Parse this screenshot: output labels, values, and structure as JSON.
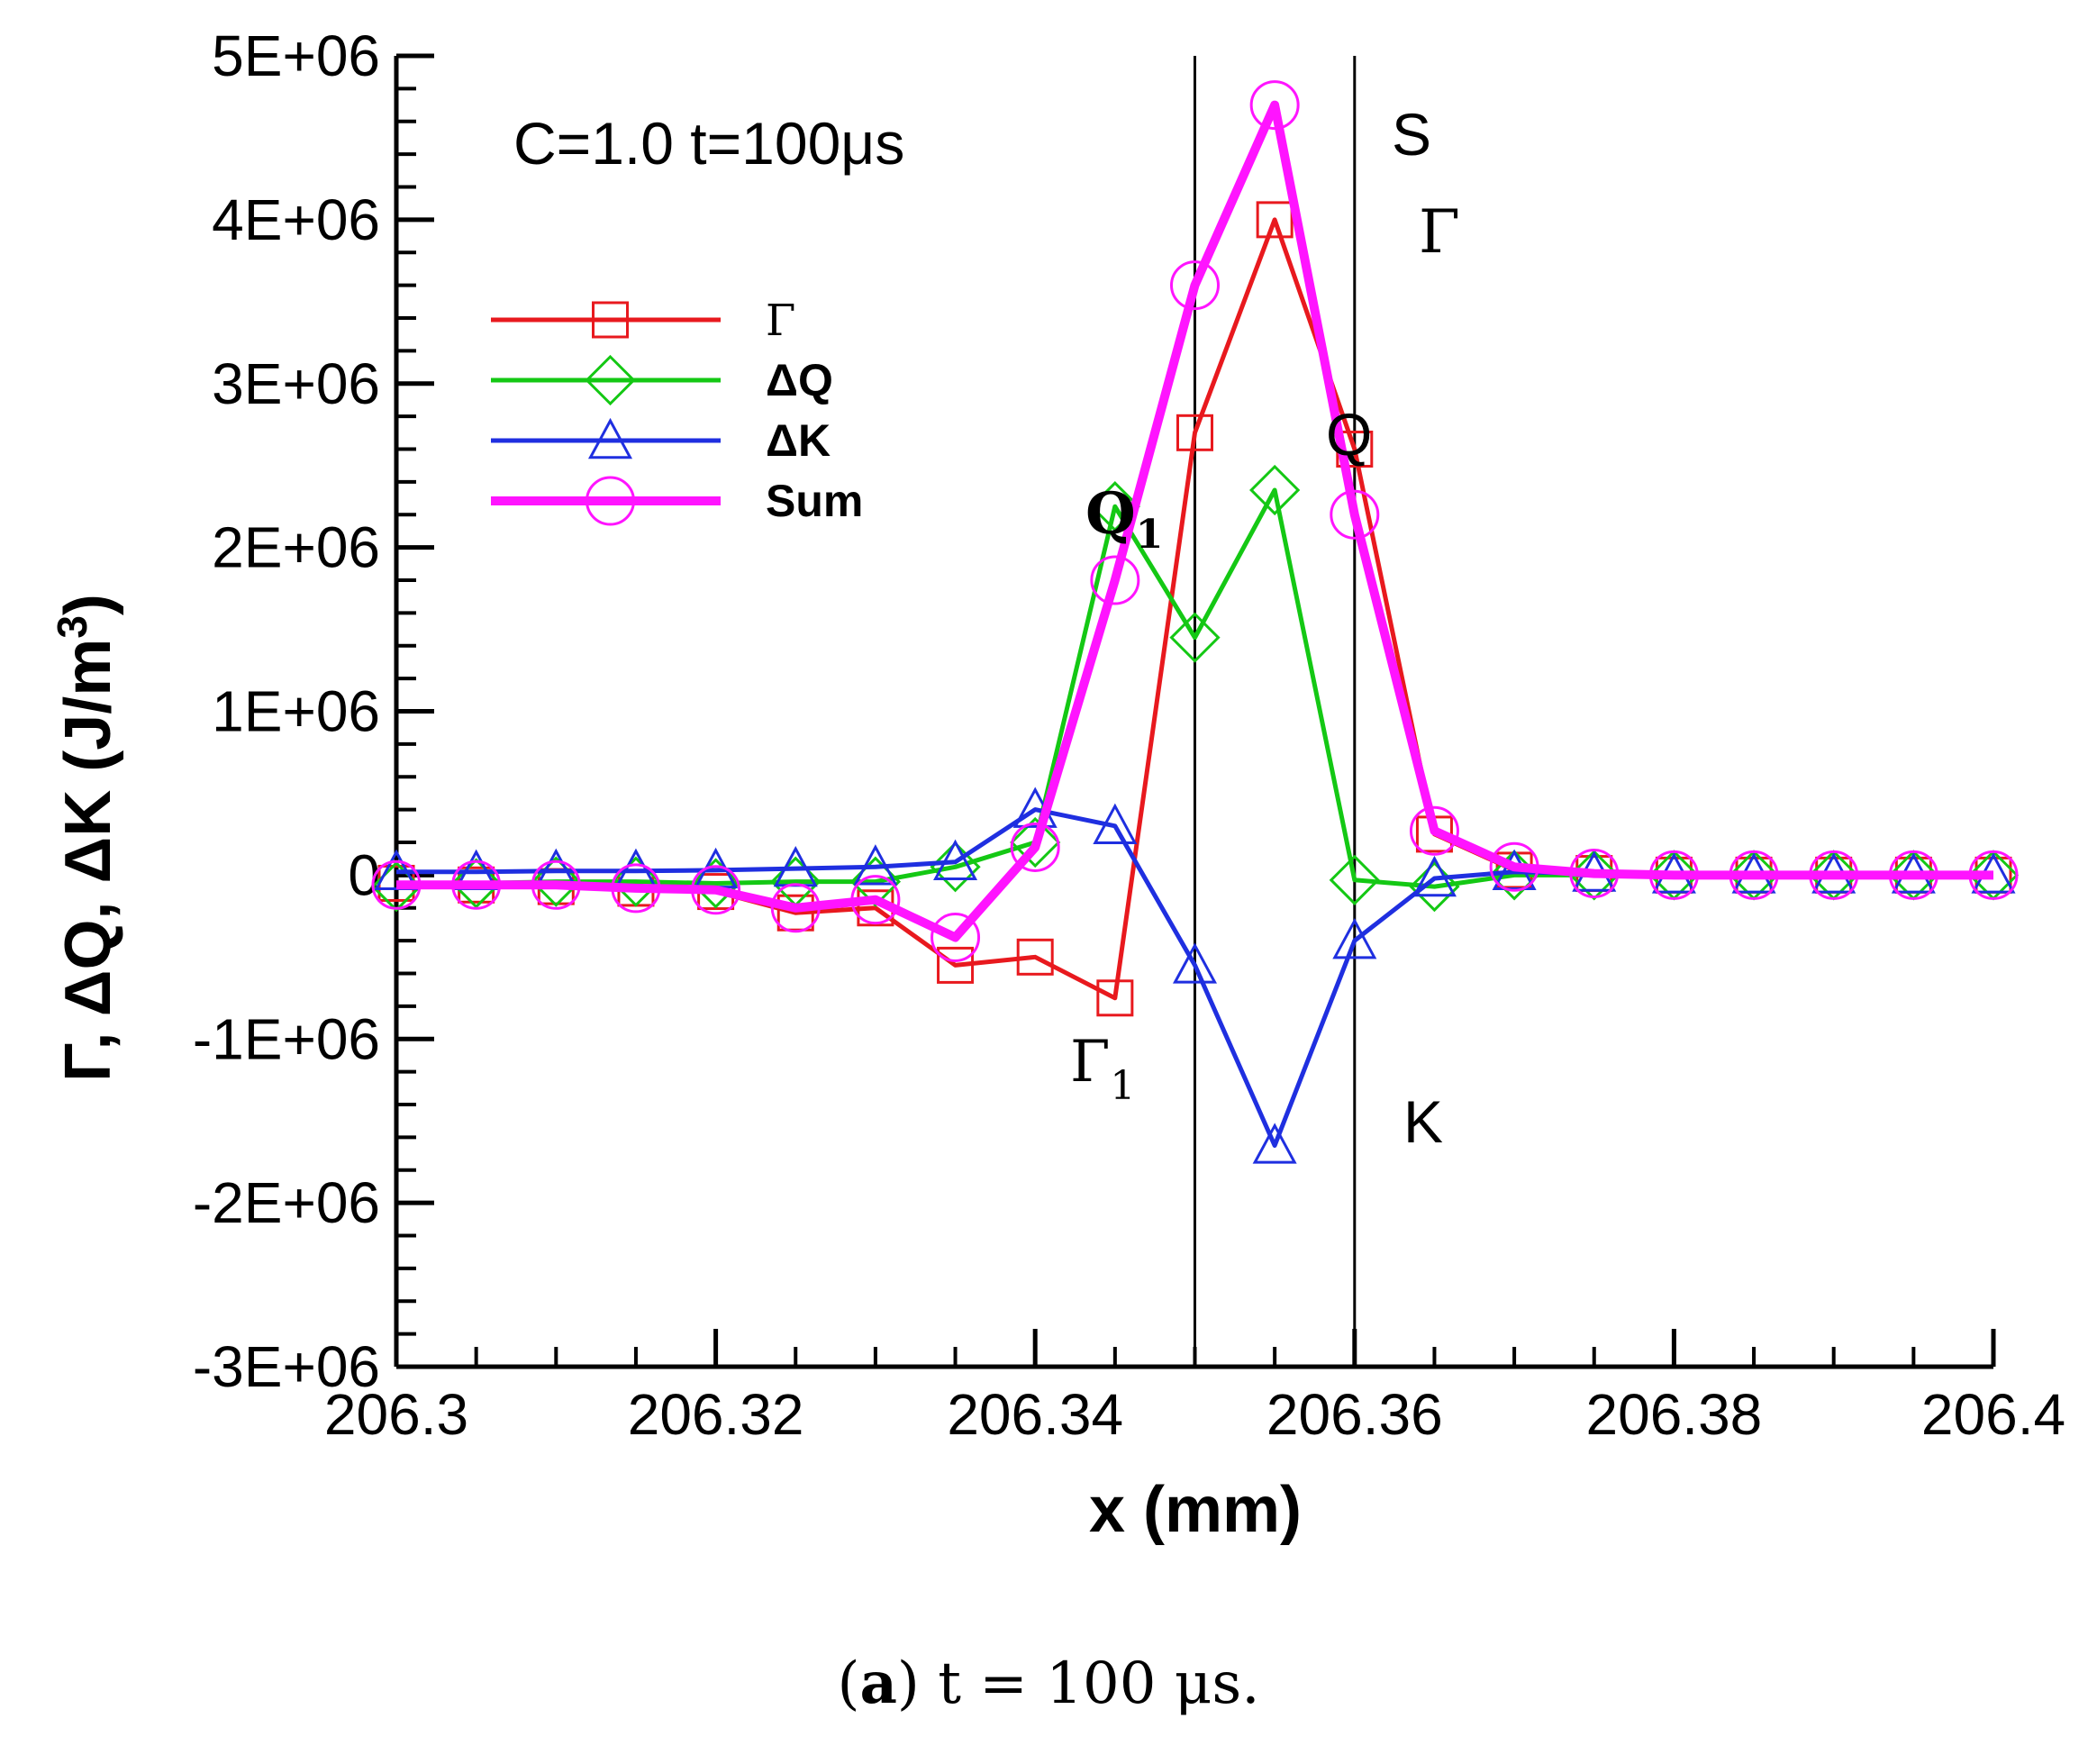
{
  "chart_data": {
    "type": "line",
    "annotation_title": "C=1.0 t=100μs",
    "xlabel": "x (mm)",
    "ylabel_main": "Γ, ΔQ, ΔK (J/m",
    "ylabel_sup": "3",
    "ylabel_close": ")",
    "xlim": [
      206.3,
      206.4
    ],
    "ylim": [
      -3000000,
      5000000
    ],
    "x_ticks": [
      206.3,
      206.32,
      206.34,
      206.36,
      206.38,
      206.4
    ],
    "x_tick_labels": [
      "206.3",
      "206.32",
      "206.34",
      "206.36",
      "206.38",
      "206.4"
    ],
    "y_ticks": [
      -3000000,
      -2000000,
      -1000000,
      0,
      1000000,
      2000000,
      3000000,
      4000000,
      5000000
    ],
    "y_tick_labels": [
      "-3E+06",
      "-2E+06",
      "-1E+06",
      "0",
      "1E+06",
      "2E+06",
      "3E+06",
      "4E+06",
      "5E+06"
    ],
    "vertical_lines": [
      206.35,
      206.36
    ],
    "x": [
      206.3,
      206.305,
      206.31,
      206.315,
      206.32,
      206.325,
      206.33,
      206.335,
      206.34,
      206.345,
      206.35,
      206.355,
      206.36,
      206.365,
      206.37,
      206.375,
      206.38,
      206.385,
      206.39,
      206.395,
      206.4
    ],
    "series": [
      {
        "name": "Γ",
        "color": "#e8191e",
        "marker": "square",
        "values": [
          -50000,
          -60000,
          -70000,
          -80000,
          -100000,
          -230000,
          -200000,
          -550000,
          -500000,
          -750000,
          2700000,
          4000000,
          2600000,
          250000,
          30000,
          10000,
          0,
          0,
          0,
          0,
          0
        ]
      },
      {
        "name": "ΔQ",
        "color": "#14c814",
        "marker": "diamond",
        "values": [
          -70000,
          -50000,
          -40000,
          -40000,
          -50000,
          -40000,
          -40000,
          50000,
          200000,
          2250000,
          1450000,
          2350000,
          -30000,
          -70000,
          0,
          0,
          0,
          0,
          0,
          0,
          0
        ]
      },
      {
        "name": "ΔK",
        "color": "#1f2fe0",
        "marker": "triangle",
        "values": [
          20000,
          20000,
          25000,
          25000,
          30000,
          40000,
          50000,
          80000,
          400000,
          300000,
          -550000,
          -1650000,
          -400000,
          -20000,
          20000,
          10000,
          0,
          0,
          0,
          0,
          0
        ]
      },
      {
        "name": "Sum",
        "color": "#ff14ff",
        "marker": "circle",
        "values": [
          -60000,
          -60000,
          -60000,
          -80000,
          -90000,
          -200000,
          -150000,
          -380000,
          170000,
          1800000,
          3600000,
          4700000,
          2200000,
          270000,
          50000,
          10000,
          0,
          0,
          0,
          0,
          0
        ]
      }
    ],
    "annotations": {
      "S": "S",
      "Gamma": "Γ",
      "Q": "Q",
      "Q1_main": "Q",
      "Q1_sub": "1",
      "Gamma1_main": "Γ",
      "Gamma1_sub": "1",
      "K": "K"
    },
    "legend": {
      "position": "top-left",
      "entries": [
        "Γ",
        "ΔQ",
        "ΔK",
        "Sum"
      ]
    }
  },
  "caption": {
    "label": "(a)",
    "label_letter": "a",
    "text": " t = 100 μs."
  }
}
